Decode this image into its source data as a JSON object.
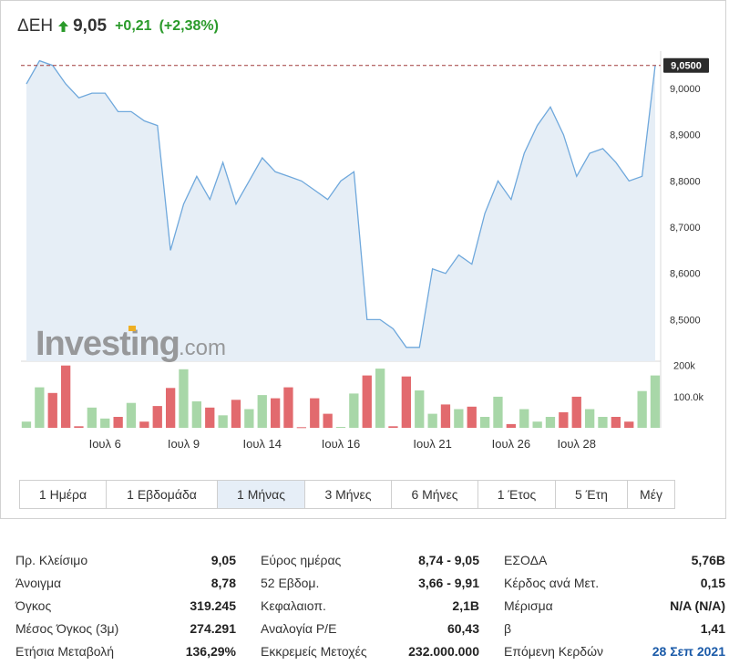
{
  "header": {
    "symbol": "ΔΕΗ",
    "price": "9,05",
    "change": "+0,21",
    "change_pct": "(+2,38%)",
    "up_color": "#2a9a2a"
  },
  "chart_data": {
    "type": "area",
    "last_price_label": "9,0500",
    "ylim": [
      8.41,
      9.081
    ],
    "y_ticks": [
      "9,0000",
      "8,9000",
      "8,8000",
      "8,7000",
      "8,6000",
      "8,5000"
    ],
    "y_tick_values": [
      9.0,
      8.9,
      8.8,
      8.7,
      8.6,
      8.5
    ],
    "x_ticks": [
      "Ιουλ 6",
      "Ιουλ 9",
      "Ιουλ 14",
      "Ιουλ 16",
      "Ιουλ 21",
      "Ιουλ 26",
      "Ιουλ 28"
    ],
    "x_tick_index": [
      6,
      12,
      18,
      24,
      31,
      37,
      42
    ],
    "price": [
      9.01,
      9.06,
      9.05,
      9.01,
      8.98,
      8.99,
      8.99,
      8.95,
      8.95,
      8.93,
      8.92,
      8.65,
      8.75,
      8.81,
      8.76,
      8.84,
      8.75,
      8.8,
      8.85,
      8.82,
      8.81,
      8.8,
      8.78,
      8.76,
      8.8,
      8.82,
      8.5,
      8.5,
      8.48,
      8.44,
      8.44,
      8.61,
      8.6,
      8.64,
      8.62,
      8.73,
      8.8,
      8.76,
      8.86,
      8.92,
      8.96,
      8.9,
      8.81,
      8.86,
      8.87,
      8.84,
      8.8,
      8.81,
      9.05
    ],
    "volume_ticks": [
      "200k",
      "100.0k"
    ],
    "volume_tick_values": [
      200000,
      100000
    ],
    "volume_ylim": [
      0,
      205000
    ],
    "volume": [
      {
        "v": 20000,
        "d": "up"
      },
      {
        "v": 130000,
        "d": "up"
      },
      {
        "v": 112000,
        "d": "down"
      },
      {
        "v": 200000,
        "d": "down"
      },
      {
        "v": 5000,
        "d": "down"
      },
      {
        "v": 65000,
        "d": "up"
      },
      {
        "v": 30000,
        "d": "up"
      },
      {
        "v": 35000,
        "d": "down"
      },
      {
        "v": 80000,
        "d": "up"
      },
      {
        "v": 20000,
        "d": "down"
      },
      {
        "v": 70000,
        "d": "down"
      },
      {
        "v": 128000,
        "d": "down"
      },
      {
        "v": 188000,
        "d": "up"
      },
      {
        "v": 85000,
        "d": "up"
      },
      {
        "v": 65000,
        "d": "down"
      },
      {
        "v": 40000,
        "d": "up"
      },
      {
        "v": 90000,
        "d": "down"
      },
      {
        "v": 60000,
        "d": "up"
      },
      {
        "v": 105000,
        "d": "up"
      },
      {
        "v": 95000,
        "d": "down"
      },
      {
        "v": 130000,
        "d": "down"
      },
      {
        "v": 2000,
        "d": "down"
      },
      {
        "v": 95000,
        "d": "down"
      },
      {
        "v": 45000,
        "d": "down"
      },
      {
        "v": 3000,
        "d": "up"
      },
      {
        "v": 110000,
        "d": "up"
      },
      {
        "v": 168000,
        "d": "down"
      },
      {
        "v": 190000,
        "d": "up"
      },
      {
        "v": 5000,
        "d": "down"
      },
      {
        "v": 165000,
        "d": "down"
      },
      {
        "v": 120000,
        "d": "up"
      },
      {
        "v": 45000,
        "d": "up"
      },
      {
        "v": 75000,
        "d": "down"
      },
      {
        "v": 60000,
        "d": "up"
      },
      {
        "v": 68000,
        "d": "down"
      },
      {
        "v": 35000,
        "d": "up"
      },
      {
        "v": 100000,
        "d": "up"
      },
      {
        "v": 12000,
        "d": "down"
      },
      {
        "v": 60000,
        "d": "up"
      },
      {
        "v": 20000,
        "d": "up"
      },
      {
        "v": 35000,
        "d": "up"
      },
      {
        "v": 50000,
        "d": "down"
      },
      {
        "v": 100000,
        "d": "down"
      },
      {
        "v": 60000,
        "d": "up"
      },
      {
        "v": 35000,
        "d": "up"
      },
      {
        "v": 35000,
        "d": "down"
      },
      {
        "v": 20000,
        "d": "down"
      },
      {
        "v": 118000,
        "d": "up"
      },
      {
        "v": 168000,
        "d": "up"
      }
    ],
    "line_color": "#6fa8dc",
    "area_color": "#e6eef6",
    "up_bar_color": "#a8d7a8",
    "down_bar_color": "#e26a6e",
    "ref_line_color": "#a03a3a"
  },
  "tabs": [
    {
      "label": "1 Ημέρα",
      "active": false
    },
    {
      "label": "1 Εβδομάδα",
      "active": false
    },
    {
      "label": "1 Μήνας",
      "active": true
    },
    {
      "label": "3 Μήνες",
      "active": false
    },
    {
      "label": "6 Μήνες",
      "active": false
    },
    {
      "label": "1 Έτος",
      "active": false
    },
    {
      "label": "5 Έτη",
      "active": false
    },
    {
      "label": "Μέγ",
      "active": false
    }
  ],
  "stats": {
    "col1": [
      {
        "k": "Πρ. Κλείσιμο",
        "v": "9,05"
      },
      {
        "k": "Άνοιγμα",
        "v": "8,78"
      },
      {
        "k": "Όγκος",
        "v": "319.245"
      },
      {
        "k": "Μέσος Όγκος (3μ)",
        "v": "274.291"
      },
      {
        "k": "Ετήσια Μεταβολή",
        "v": "136,29%"
      }
    ],
    "col2": [
      {
        "k": "Εύρος ημέρας",
        "v": "8,74 - 9,05"
      },
      {
        "k": "52 Εβδομ.",
        "v": "3,66 - 9,91"
      },
      {
        "k": "Κεφαλαιοπ.",
        "v": "2,1B"
      },
      {
        "k": "Αναλογία P/E",
        "v": "60,43"
      },
      {
        "k": "Εκκρεμείς Μετοχές",
        "v": "232.000.000"
      }
    ],
    "col3": [
      {
        "k": "ΕΣΟΔΑ",
        "v": "5,76B"
      },
      {
        "k": "Κέρδος ανά Μετ.",
        "v": "0,15"
      },
      {
        "k": "Μέρισμα",
        "v": "N/A (N/A)"
      },
      {
        "k": "β",
        "v": "1,41"
      },
      {
        "k": "Επόμενη Κερδών",
        "v": "28 Σεπ 2021"
      }
    ]
  }
}
